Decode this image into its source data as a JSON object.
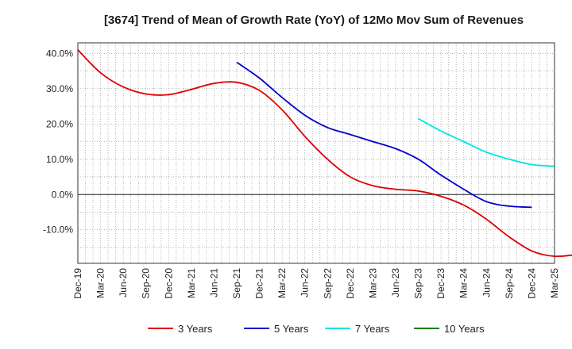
{
  "chart_data": {
    "type": "line",
    "title": "[3674]  Trend of Mean of Growth Rate (YoY) of 12Mo Mov Sum of Revenues",
    "xlabel": "",
    "ylabel": "",
    "x_ticks": [
      "Dec-19",
      "Mar-20",
      "Jun-20",
      "Sep-20",
      "Dec-20",
      "Mar-21",
      "Jun-21",
      "Sep-21",
      "Dec-21",
      "Mar-22",
      "Jun-22",
      "Sep-22",
      "Dec-22",
      "Mar-23",
      "Jun-23",
      "Sep-23",
      "Dec-23",
      "Mar-24",
      "Jun-24",
      "Sep-24",
      "Dec-24",
      "Mar-25"
    ],
    "y_ticks": [
      40,
      30,
      20,
      10,
      0,
      -10
    ],
    "y_tick_labels": [
      "40.0%",
      "30.0%",
      "20.0%",
      "10.0%",
      "0.0%",
      "-10.0%"
    ],
    "ylim": [
      -19.5,
      43
    ],
    "grid": true,
    "legend_position": "bottom",
    "series": [
      {
        "name": "3 Years",
        "color": "#dd0000",
        "start_index": 0,
        "values": [
          41.0,
          34.5,
          30.5,
          28.5,
          28.3,
          29.8,
          31.5,
          31.8,
          29.5,
          24.0,
          16.5,
          10.0,
          5.0,
          2.5,
          1.5,
          1.0,
          -0.5,
          -3.0,
          -7.0,
          -12.0,
          -16.0,
          -17.5,
          -17.0
        ]
      },
      {
        "name": "5 Years",
        "color": "#0000cc",
        "start_index": 7,
        "values": [
          37.5,
          33.0,
          27.5,
          22.5,
          19.0,
          17.0,
          15.0,
          13.0,
          10.0,
          5.5,
          1.5,
          -2.0,
          -3.3,
          -3.6
        ]
      },
      {
        "name": "7 Years",
        "color": "#00e5e5",
        "start_index": 15,
        "values": [
          21.5,
          18.0,
          15.0,
          12.0,
          10.0,
          8.5,
          8.0
        ]
      },
      {
        "name": "10 Years",
        "color": "#008000",
        "start_index": 0,
        "values": []
      }
    ]
  }
}
